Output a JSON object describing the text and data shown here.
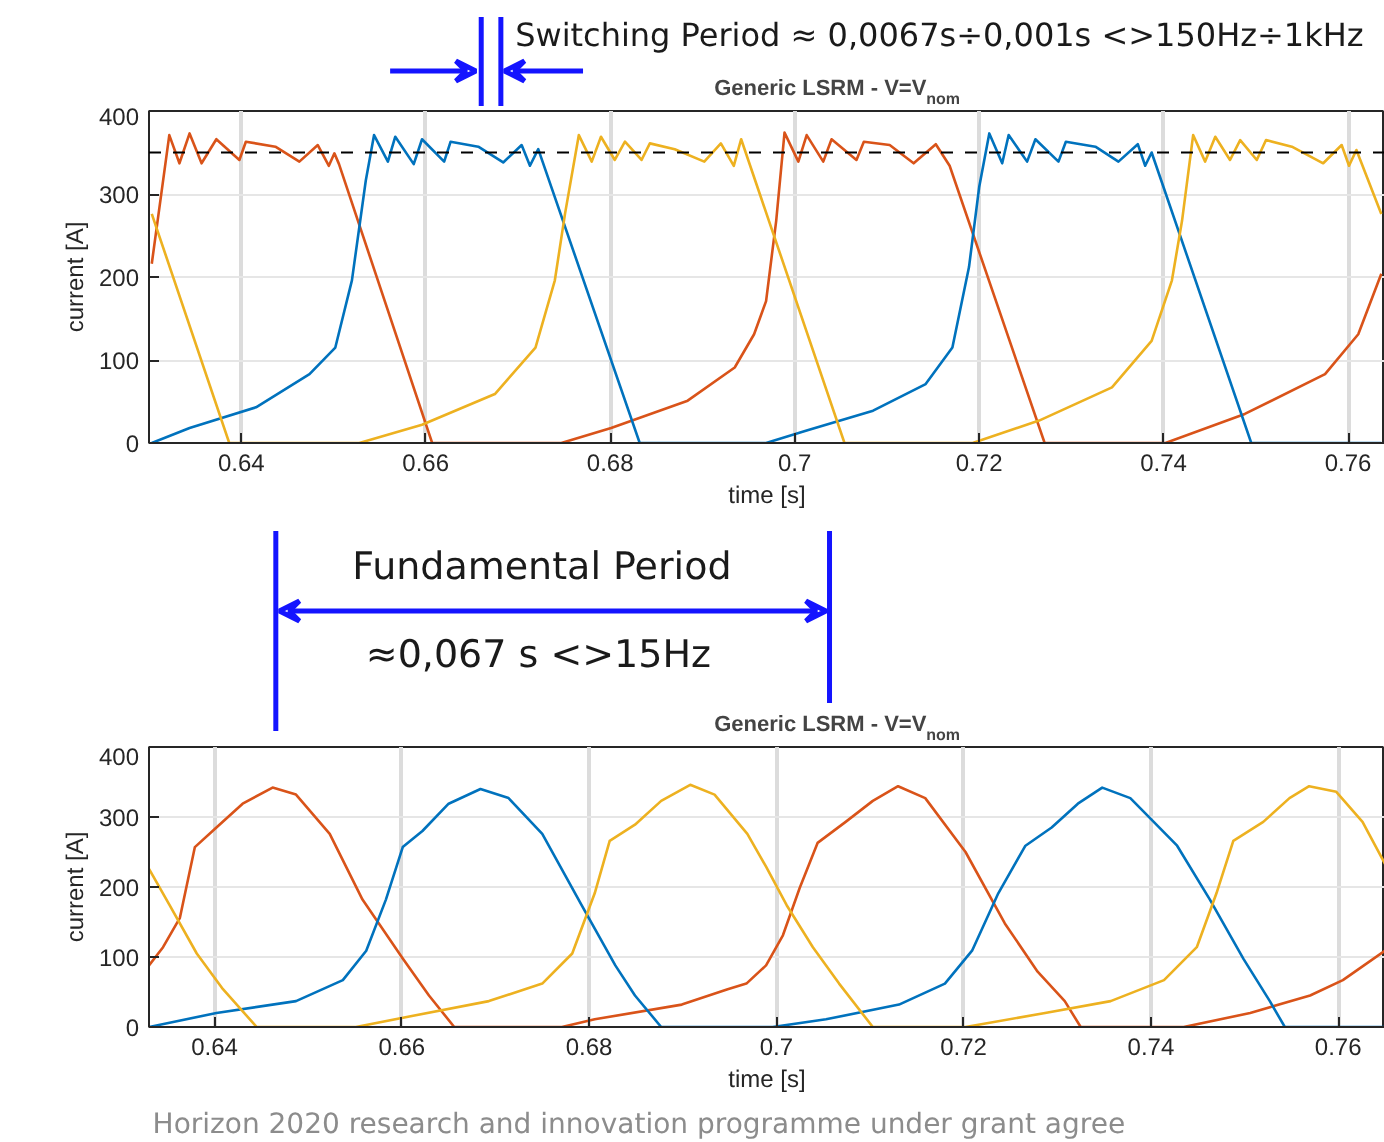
{
  "chart_data": [
    {
      "type": "line",
      "title": "Generic LSRM - V=V$_{nom}$",
      "xlabel": "time [s]",
      "ylabel": "current [A]",
      "annotations": [
        "Switching Period ≈ 0,0067s÷0,001s <>150Hz÷1kHz",
        "Fundamental Period",
        "≈0,067 s <>15Hz"
      ],
      "xlim": [
        0.63,
        0.764
      ],
      "ylim": [
        0,
        400
      ],
      "xticks": [
        0.64,
        0.66,
        0.68,
        0.7,
        0.72,
        0.74,
        0.76
      ],
      "yticks": [
        0,
        100,
        200,
        300,
        400
      ],
      "grid": true,
      "marker": "none",
      "line_style": "solid",
      "ref_lines": [
        {
          "axis": "y",
          "value": 350,
          "color": "#000000",
          "line_style": "dashed"
        }
      ],
      "series": [
        {
          "color": "#d95319",
          "x": [
            0.6303,
            0.6322,
            0.6333,
            0.6344,
            0.6357,
            0.6373,
            0.6398,
            0.6405,
            0.6437,
            0.6463,
            0.6483,
            0.6495,
            0.6501,
            0.6506,
            0.6607,
            0.6747,
            0.6801,
            0.6884,
            0.6935,
            0.6956,
            0.6969,
            0.698,
            0.6989,
            0.7004,
            0.7013,
            0.7031,
            0.704,
            0.7067,
            0.7075,
            0.7103,
            0.7129,
            0.7153,
            0.7168,
            0.7271,
            0.7402,
            0.7488,
            0.7575,
            0.7611,
            0.7636
          ],
          "values": [
            216,
            371,
            337,
            373,
            337,
            366,
            341,
            363,
            357,
            339,
            359,
            334,
            349,
            336,
            0,
            0,
            18,
            51,
            91,
            131,
            171,
            268,
            374,
            339,
            371,
            339,
            366,
            341,
            363,
            359,
            337,
            360,
            334,
            0,
            0,
            35,
            83,
            131,
            204
          ]
        },
        {
          "color": "#0072bd",
          "x": [
            0.6303,
            0.6344,
            0.6416,
            0.6474,
            0.6502,
            0.652,
            0.6535,
            0.6544,
            0.6559,
            0.6567,
            0.6587,
            0.6596,
            0.662,
            0.6627,
            0.6657,
            0.6684,
            0.6704,
            0.6713,
            0.6722,
            0.6832,
            0.6969,
            0.7013,
            0.7085,
            0.7142,
            0.7171,
            0.7189,
            0.72,
            0.7211,
            0.7225,
            0.7232,
            0.7252,
            0.7261,
            0.7286,
            0.7294,
            0.7326,
            0.7351,
            0.7372,
            0.738,
            0.7387,
            0.7495,
            0.7636
          ],
          "values": [
            0,
            18,
            43,
            83,
            115,
            196,
            316,
            371,
            339,
            369,
            336,
            366,
            339,
            363,
            357,
            338,
            359,
            334,
            354,
            0,
            0,
            15,
            39,
            71,
            115,
            212,
            308,
            373,
            337,
            371,
            339,
            366,
            339,
            363,
            357,
            339,
            360,
            334,
            350,
            0,
            0
          ]
        },
        {
          "color": "#edb120",
          "x": [
            0.6303,
            0.6387,
            0.6528,
            0.6596,
            0.6675,
            0.6719,
            0.674,
            0.6751,
            0.6766,
            0.678,
            0.679,
            0.6805,
            0.6816,
            0.6834,
            0.6843,
            0.687,
            0.6902,
            0.692,
            0.6934,
            0.6942,
            0.7054,
            0.7193,
            0.7265,
            0.7344,
            0.7387,
            0.7409,
            0.742,
            0.7432,
            0.7445,
            0.7456,
            0.7472,
            0.7483,
            0.7501,
            0.7511,
            0.7539,
            0.7573,
            0.7593,
            0.7601,
            0.7609,
            0.7636
          ],
          "values": [
            276,
            0,
            0,
            22,
            59,
            115,
            196,
            276,
            371,
            339,
            369,
            341,
            363,
            341,
            361,
            354,
            339,
            361,
            334,
            366,
            0,
            0,
            27,
            67,
            123,
            196,
            268,
            371,
            339,
            369,
            341,
            365,
            341,
            365,
            357,
            337,
            359,
            334,
            353,
            276
          ]
        }
      ]
    },
    {
      "type": "line",
      "title": "Generic LSRM - V=V$_{nom}$",
      "xlabel": "time [s]",
      "ylabel": "current [A]",
      "annotations": [
        "Horizon 2020 research and innovation programme under grant agree"
      ],
      "xlim": [
        0.633,
        0.765
      ],
      "ylim": [
        0,
        400
      ],
      "xticks": [
        0.64,
        0.66,
        0.68,
        0.7,
        0.72,
        0.74,
        0.76
      ],
      "yticks": [
        0,
        100,
        200,
        300,
        400
      ],
      "grid": true,
      "marker": "none",
      "line_style": "solid",
      "series": [
        {
          "color": "#d95319",
          "x": [
            0.633,
            0.6345,
            0.6363,
            0.6379,
            0.6402,
            0.643,
            0.6462,
            0.6487,
            0.6523,
            0.6558,
            0.6601,
            0.6629,
            0.6656,
            0.6771,
            0.6806,
            0.6899,
            0.6948,
            0.6968,
            0.6989,
            0.7007,
            0.7025,
            0.7044,
            0.7074,
            0.7103,
            0.713,
            0.7159,
            0.7202,
            0.7244,
            0.7279,
            0.7308,
            0.7325,
            0.7435,
            0.7506,
            0.757,
            0.7605,
            0.765
          ],
          "values": [
            88,
            114,
            156,
            257,
            285,
            319,
            342,
            332,
            276,
            182,
            98,
            45,
            0,
            0,
            11,
            32,
            54,
            62,
            88,
            131,
            199,
            263,
            293,
            323,
            344,
            327,
            250,
            148,
            79,
            37,
            0,
            0,
            20,
            45,
            67,
            109
          ]
        },
        {
          "color": "#0072bd",
          "x": [
            0.633,
            0.6402,
            0.6487,
            0.6537,
            0.6562,
            0.6583,
            0.6601,
            0.6622,
            0.665,
            0.6684,
            0.6714,
            0.675,
            0.6792,
            0.6828,
            0.6849,
            0.6877,
            0.6996,
            0.7053,
            0.7131,
            0.718,
            0.7209,
            0.7237,
            0.7266,
            0.7294,
            0.7322,
            0.7348,
            0.7378,
            0.7428,
            0.7463,
            0.7499,
            0.7527,
            0.7543,
            0.765
          ],
          "values": [
            0,
            20,
            37,
            67,
            109,
            182,
            257,
            280,
            319,
            340,
            327,
            276,
            174,
            88,
            45,
            0,
            0,
            11,
            32,
            62,
            109,
            191,
            259,
            285,
            319,
            342,
            327,
            259,
            182,
            97,
            37,
            0,
            0
          ]
        },
        {
          "color": "#edb120",
          "x": [
            0.633,
            0.6352,
            0.6381,
            0.6409,
            0.6445,
            0.6551,
            0.6608,
            0.6693,
            0.675,
            0.6782,
            0.6806,
            0.6822,
            0.6849,
            0.6877,
            0.6908,
            0.6934,
            0.6969,
            0.6989,
            0.7011,
            0.7039,
            0.7067,
            0.7103,
            0.7202,
            0.7287,
            0.7357,
            0.7414,
            0.7449,
            0.747,
            0.7488,
            0.752,
            0.7548,
            0.7569,
            0.7598,
            0.7626,
            0.765
          ],
          "values": [
            226,
            174,
            105,
            54,
            0,
            0,
            15,
            37,
            62,
            105,
            191,
            266,
            289,
            323,
            346,
            332,
            276,
            229,
            174,
            114,
            62,
            0,
            0,
            20,
            37,
            67,
            114,
            191,
            266,
            293,
            327,
            344,
            336,
            293,
            233
          ]
        }
      ]
    }
  ]
}
